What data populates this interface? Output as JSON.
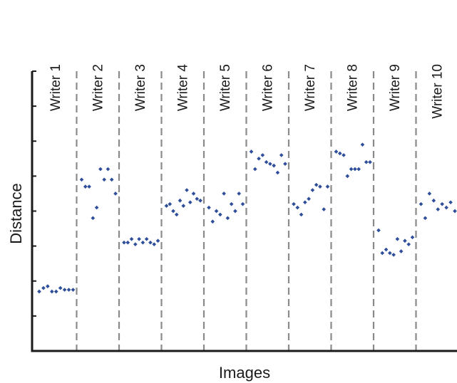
{
  "chart_data": {
    "type": "scatter",
    "title": "",
    "xlabel": "Images",
    "ylabel": "Distance",
    "ylim": [
      0,
      8
    ],
    "x_tick_labels": "none",
    "y_tick_labels": "none",
    "grid": false,
    "separators": "dashed vertical lines between writers",
    "marker_color": "#2f4f9a",
    "separator_color": "#8a8a8a",
    "axis_color": "#1a1a1a",
    "writers": [
      "Writer 1",
      "Writer 2",
      "Writer 3",
      "Writer 4",
      "Writer 5",
      "Writer 6",
      "Writer 7",
      "Writer 8",
      "Writer 9",
      "Writer 10"
    ],
    "series": [
      {
        "values": [
          1.7,
          1.8,
          1.85,
          1.7,
          1.7,
          1.8,
          1.75,
          1.75,
          1.75
        ]
      },
      {
        "values": [
          4.9,
          4.7,
          4.7,
          3.8,
          4.1,
          5.2,
          4.9,
          5.2,
          4.9,
          4.5
        ]
      },
      {
        "values": [
          3.1,
          3.1,
          3.2,
          3.05,
          3.2,
          3.1,
          3.2,
          3.1,
          3.05,
          3.15
        ]
      },
      {
        "values": [
          4.15,
          4.2,
          4.0,
          3.9,
          4.3,
          4.15,
          4.6,
          4.25,
          4.5,
          4.35,
          4.3
        ]
      },
      {
        "values": [
          4.1,
          3.7,
          4.0,
          3.9,
          4.5,
          3.8,
          4.2,
          4.0,
          4.5,
          4.2
        ]
      },
      {
        "values": [
          5.7,
          5.2,
          5.5,
          5.6,
          5.4,
          5.35,
          5.3,
          5.1,
          5.6,
          5.35
        ]
      },
      {
        "values": [
          4.2,
          4.1,
          3.9,
          4.25,
          4.35,
          4.6,
          4.75,
          4.7,
          4.05,
          4.7
        ]
      },
      {
        "values": [
          5.7,
          5.65,
          5.6,
          5.0,
          5.2,
          5.2,
          5.2,
          5.9,
          5.4,
          5.4
        ]
      },
      {
        "values": [
          3.45,
          2.8,
          2.9,
          2.8,
          2.75,
          3.2,
          2.85,
          3.15,
          3.05,
          3.25
        ]
      },
      {
        "values": [
          4.2,
          3.8,
          4.5,
          4.3,
          4.05,
          4.2,
          4.1,
          4.25,
          4.0
        ]
      }
    ]
  }
}
